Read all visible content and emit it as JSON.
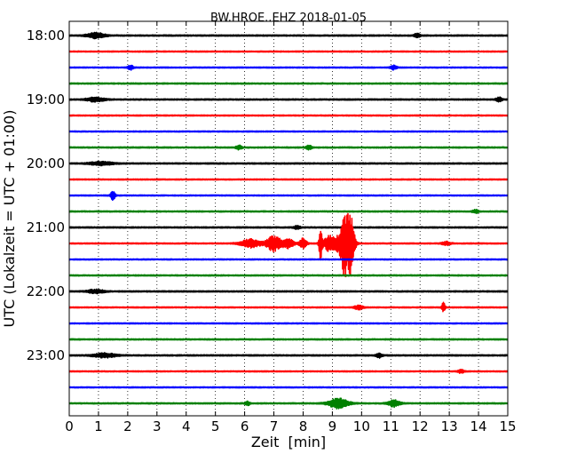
{
  "chart_data": {
    "type": "line",
    "title": "BW.HROE..EHZ 2018-01-05",
    "xlabel": "Zeit  [min]",
    "ylabel": "UTC (Lokalzeit = UTC + 01:00)",
    "xlim": [
      0,
      15
    ],
    "x_ticks": [
      "0",
      "1",
      "2",
      "3",
      "4",
      "5",
      "6",
      "7",
      "8",
      "9",
      "10",
      "11",
      "12",
      "13",
      "14",
      "15"
    ],
    "y_tick_labels": [
      "18:00",
      "19:00",
      "20:00",
      "21:00",
      "22:00",
      "23:00"
    ],
    "grid": "vertical dotted",
    "trace_colors": [
      "#000000",
      "#ff0000",
      "#0000ff",
      "#008000"
    ],
    "traces": [
      {
        "start": "18:00",
        "color": "#000000",
        "noise": 0.18,
        "events": [
          {
            "x": 0.9,
            "amp": 0.8,
            "width": 0.3
          },
          {
            "x": 11.9,
            "amp": 0.6,
            "width": 0.1
          }
        ]
      },
      {
        "start": "18:15",
        "color": "#ff0000",
        "noise": 0.15,
        "events": []
      },
      {
        "start": "18:30",
        "color": "#0000ff",
        "noise": 0.15,
        "events": [
          {
            "x": 2.1,
            "amp": 0.6,
            "width": 0.1
          },
          {
            "x": 11.1,
            "amp": 0.6,
            "width": 0.1
          }
        ]
      },
      {
        "start": "18:45",
        "color": "#008000",
        "noise": 0.16,
        "events": []
      },
      {
        "start": "19:00",
        "color": "#000000",
        "noise": 0.18,
        "events": [
          {
            "x": 0.9,
            "amp": 0.6,
            "width": 0.3
          },
          {
            "x": 14.7,
            "amp": 0.6,
            "width": 0.1
          }
        ]
      },
      {
        "start": "19:15",
        "color": "#ff0000",
        "noise": 0.15,
        "events": []
      },
      {
        "start": "19:30",
        "color": "#0000ff",
        "noise": 0.15,
        "events": []
      },
      {
        "start": "19:45",
        "color": "#008000",
        "noise": 0.16,
        "events": [
          {
            "x": 5.8,
            "amp": 0.6,
            "width": 0.1
          },
          {
            "x": 8.2,
            "amp": 0.6,
            "width": 0.1
          }
        ]
      },
      {
        "start": "20:00",
        "color": "#000000",
        "noise": 0.18,
        "events": [
          {
            "x": 1.1,
            "amp": 0.5,
            "width": 0.4
          }
        ]
      },
      {
        "start": "20:15",
        "color": "#ff0000",
        "noise": 0.15,
        "events": []
      },
      {
        "start": "20:30",
        "color": "#0000ff",
        "noise": 0.15,
        "events": [
          {
            "x": 1.5,
            "amp": 1.3,
            "width": 0.08
          }
        ]
      },
      {
        "start": "20:45",
        "color": "#008000",
        "noise": 0.16,
        "events": [
          {
            "x": 13.9,
            "amp": 0.5,
            "width": 0.1
          }
        ]
      },
      {
        "start": "21:00",
        "color": "#000000",
        "noise": 0.18,
        "events": [
          {
            "x": 7.8,
            "amp": 0.5,
            "width": 0.1
          }
        ]
      },
      {
        "start": "21:15",
        "color": "#ff0000",
        "noise": 0.15,
        "events": [
          {
            "x": 6.2,
            "amp": 1.2,
            "width": 0.35
          },
          {
            "x": 7.0,
            "amp": 2.2,
            "width": 0.25
          },
          {
            "x": 7.5,
            "amp": 1.3,
            "width": 0.2
          },
          {
            "x": 8.0,
            "amp": 1.5,
            "width": 0.12
          },
          {
            "x": 8.6,
            "amp": 4.5,
            "width": 0.06
          },
          {
            "x": 8.9,
            "amp": 2.2,
            "width": 0.2
          },
          {
            "x": 9.3,
            "amp": 2.8,
            "width": 0.2
          },
          {
            "x": 9.4,
            "amp": 6.0,
            "width": 0.1
          },
          {
            "x": 9.6,
            "amp": 8.5,
            "width": 0.15
          },
          {
            "x": 12.9,
            "amp": 0.5,
            "width": 0.15
          }
        ]
      },
      {
        "start": "21:30",
        "color": "#0000ff",
        "noise": 0.15,
        "events": []
      },
      {
        "start": "21:45",
        "color": "#008000",
        "noise": 0.16,
        "events": []
      },
      {
        "start": "22:00",
        "color": "#000000",
        "noise": 0.18,
        "events": [
          {
            "x": 0.9,
            "amp": 0.5,
            "width": 0.3
          }
        ]
      },
      {
        "start": "22:15",
        "color": "#ff0000",
        "noise": 0.15,
        "events": [
          {
            "x": 9.9,
            "amp": 0.6,
            "width": 0.15
          },
          {
            "x": 12.8,
            "amp": 1.3,
            "width": 0.06
          }
        ]
      },
      {
        "start": "22:30",
        "color": "#0000ff",
        "noise": 0.15,
        "events": []
      },
      {
        "start": "22:45",
        "color": "#008000",
        "noise": 0.16,
        "events": []
      },
      {
        "start": "23:00",
        "color": "#000000",
        "noise": 0.18,
        "events": [
          {
            "x": 1.2,
            "amp": 0.6,
            "width": 0.4
          },
          {
            "x": 10.6,
            "amp": 0.6,
            "width": 0.1
          }
        ]
      },
      {
        "start": "23:15",
        "color": "#ff0000",
        "noise": 0.15,
        "events": [
          {
            "x": 13.4,
            "amp": 0.5,
            "width": 0.1
          }
        ]
      },
      {
        "start": "23:30",
        "color": "#0000ff",
        "noise": 0.15,
        "events": []
      },
      {
        "start": "23:45",
        "color": "#008000",
        "noise": 0.16,
        "events": [
          {
            "x": 9.2,
            "amp": 1.4,
            "width": 0.35
          },
          {
            "x": 11.1,
            "amp": 1.0,
            "width": 0.2
          },
          {
            "x": 6.1,
            "amp": 0.6,
            "width": 0.08
          }
        ]
      }
    ]
  }
}
